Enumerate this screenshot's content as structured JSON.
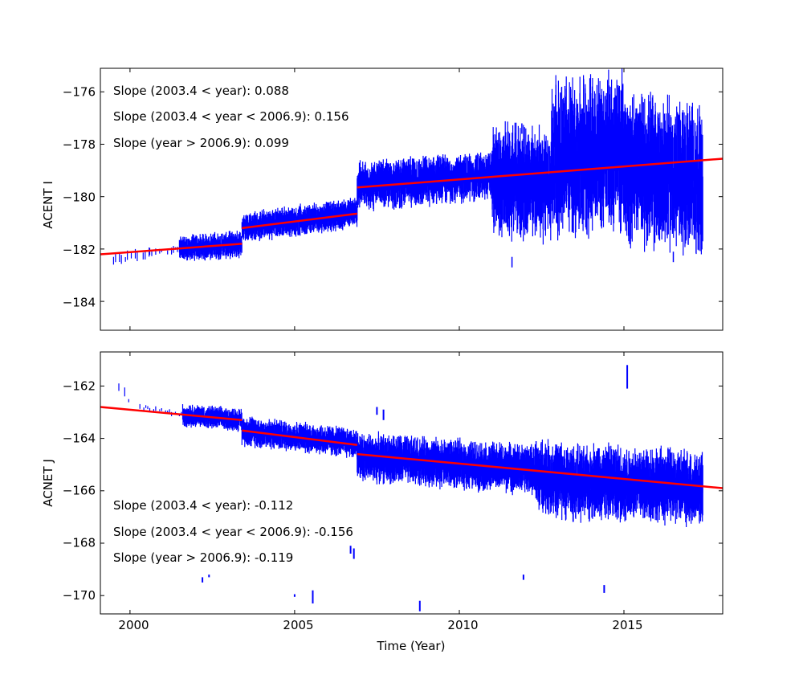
{
  "colors": {
    "data": "#0000ff",
    "fit": "#ff0000",
    "axes": "#000000",
    "background": "#ffffff"
  },
  "chart_data": [
    {
      "type": "line",
      "xlabel": "",
      "ylabel": "ACENT I",
      "xlim": [
        1999.1,
        2018.0
      ],
      "ylim": [
        -185.1,
        -175.1
      ],
      "xticks": [
        2000,
        2005,
        2010,
        2015
      ],
      "yticks": [
        -184,
        -182,
        -180,
        -178,
        -176
      ],
      "ytick_labels": [
        "−184",
        "−182",
        "−180",
        "−178",
        "−176"
      ],
      "xtick_labels_shown": false,
      "annotations": [
        "Slope (2003.4 < year):  0.088",
        "Slope (2003.4 <  year < 2006.9): 0.156",
        "Slope (year > 2006.9):  0.099"
      ],
      "data_series": {
        "name": "data",
        "segments": [
          {
            "x_start": 1999.5,
            "x_end": 2000.6,
            "center_start": -182.4,
            "center_end": -182.2,
            "spread": 0.4,
            "dense": false
          },
          {
            "x_start": 2000.6,
            "x_end": 2001.5,
            "center_start": -182.1,
            "center_end": -182.0,
            "spread": 0.3,
            "dense": false
          },
          {
            "x_start": 2001.5,
            "x_end": 2003.4,
            "center_start": -182.0,
            "center_end": -181.8,
            "spread": 0.7,
            "dense": true
          },
          {
            "x_start": 2003.4,
            "x_end": 2006.9,
            "center_start": -181.2,
            "center_end": -180.6,
            "spread": 0.8,
            "dense": true
          },
          {
            "x_start": 2006.9,
            "x_end": 2011.0,
            "center_start": -179.6,
            "center_end": -179.2,
            "spread": 1.3,
            "dense": true
          },
          {
            "x_start": 2011.0,
            "x_end": 2012.8,
            "center_start": -179.4,
            "center_end": -179.5,
            "spread": 3.0,
            "dense": true
          },
          {
            "x_start": 2012.8,
            "x_end": 2015.0,
            "center_start": -178.6,
            "center_end": -178.2,
            "spread": 4.2,
            "dense": true
          },
          {
            "x_start": 2015.0,
            "x_end": 2017.4,
            "center_start": -178.8,
            "center_end": -179.4,
            "spread": 4.0,
            "dense": true
          }
        ],
        "points": [
          [
            2011.9,
            -177.4
          ],
          [
            2011.6,
            -182.5
          ],
          [
            2016.5,
            -182.3
          ]
        ]
      },
      "fit_lines": [
        {
          "name": "fit-1",
          "x": [
            1999.1,
            2003.4
          ],
          "y": [
            -182.2,
            -181.8
          ]
        },
        {
          "name": "fit-2",
          "x": [
            2003.4,
            2006.9
          ],
          "y": [
            -181.2,
            -180.65
          ]
        },
        {
          "name": "fit-3",
          "x": [
            2006.9,
            2018.0
          ],
          "y": [
            -179.65,
            -178.55
          ]
        }
      ]
    },
    {
      "type": "line",
      "xlabel": "Time (Year)",
      "ylabel": "ACNET J",
      "xlim": [
        1999.1,
        2018.0
      ],
      "ylim": [
        -170.7,
        -160.7
      ],
      "xticks": [
        2000,
        2005,
        2010,
        2015
      ],
      "xtick_labels": [
        "2000",
        "2005",
        "2010",
        "2015"
      ],
      "yticks": [
        -170,
        -168,
        -166,
        -164,
        -162
      ],
      "ytick_labels": [
        "−170",
        "−168",
        "−166",
        "−164",
        "−162"
      ],
      "xtick_labels_shown": true,
      "annotations": [
        "Slope (2003.4 < year):  -0.112",
        "Slope (2003.4 <  year < 2006.9): -0.156",
        "Slope (year > 2006.9):  -0.119"
      ],
      "data_series": {
        "name": "data",
        "segments": [
          {
            "x_start": 1999.6,
            "x_end": 2000.0,
            "center_start": -162.1,
            "center_end": -162.5,
            "spread": 0.4,
            "dense": false
          },
          {
            "x_start": 2000.3,
            "x_end": 2001.6,
            "center_start": -162.8,
            "center_end": -163.1,
            "spread": 0.2,
            "dense": false
          },
          {
            "x_start": 2001.6,
            "x_end": 2003.4,
            "center_start": -163.1,
            "center_end": -163.3,
            "spread": 0.6,
            "dense": true
          },
          {
            "x_start": 2003.4,
            "x_end": 2006.9,
            "center_start": -163.7,
            "center_end": -164.2,
            "spread": 0.8,
            "dense": true
          },
          {
            "x_start": 2006.9,
            "x_end": 2012.3,
            "center_start": -164.7,
            "center_end": -165.2,
            "spread": 1.3,
            "dense": true
          },
          {
            "x_start": 2012.3,
            "x_end": 2014.0,
            "center_start": -165.4,
            "center_end": -165.8,
            "spread": 2.0,
            "dense": true
          },
          {
            "x_start": 2014.0,
            "x_end": 2017.4,
            "center_start": -165.6,
            "center_end": -165.9,
            "spread": 2.0,
            "dense": true
          }
        ],
        "outliers": [
          [
            2015.1,
            -161.2,
            -162.1
          ],
          [
            2007.5,
            -162.8,
            -163.1
          ],
          [
            2007.7,
            -162.9,
            -163.3
          ],
          [
            2006.7,
            -168.1,
            -168.4
          ],
          [
            2006.8,
            -168.2,
            -168.6
          ],
          [
            2002.2,
            -169.3,
            -169.5
          ],
          [
            2002.4,
            -169.2,
            -169.3
          ],
          [
            2005.0,
            -169.95,
            -170.05
          ],
          [
            2005.55,
            -169.8,
            -170.3
          ],
          [
            2008.8,
            -170.2,
            -170.6
          ],
          [
            2011.95,
            -169.2,
            -169.4
          ],
          [
            2014.4,
            -169.6,
            -169.9
          ]
        ]
      },
      "fit_lines": [
        {
          "name": "fit-1",
          "x": [
            1999.1,
            2003.4
          ],
          "y": [
            -162.8,
            -163.3
          ]
        },
        {
          "name": "fit-2",
          "x": [
            2003.4,
            2006.9
          ],
          "y": [
            -163.7,
            -164.25
          ]
        },
        {
          "name": "fit-3",
          "x": [
            2006.9,
            2018.0
          ],
          "y": [
            -164.6,
            -165.9
          ]
        }
      ]
    }
  ]
}
